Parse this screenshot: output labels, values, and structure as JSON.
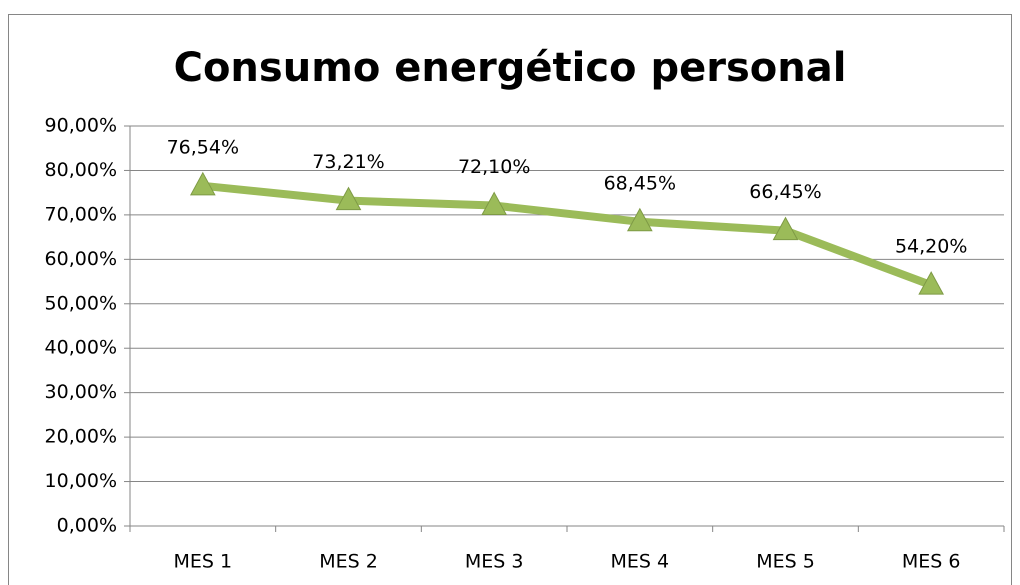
{
  "chart_data": {
    "type": "line",
    "title": "Consumo energético personal",
    "categories": [
      "MES 1",
      "MES 2",
      "MES 3",
      "MES 4",
      "MES 5",
      "MES 6"
    ],
    "series": [
      {
        "color": "#9bbb59",
        "values": [
          76.54,
          73.21,
          72.1,
          68.45,
          66.45,
          54.2
        ],
        "value_labels": [
          "76,54%",
          "73,21%",
          "72,10%",
          "68,45%",
          "66,45%",
          "54,20%"
        ]
      }
    ],
    "ylim": [
      0,
      90
    ],
    "yticks": [
      {
        "value": 0,
        "label": "0,00%"
      },
      {
        "value": 10,
        "label": "10,00%"
      },
      {
        "value": 20,
        "label": "20,00%"
      },
      {
        "value": 30,
        "label": "30,00%"
      },
      {
        "value": 40,
        "label": "40,00%"
      },
      {
        "value": 50,
        "label": "50,00%"
      },
      {
        "value": 60,
        "label": "60,00%"
      },
      {
        "value": 70,
        "label": "70,00%"
      },
      {
        "value": 80,
        "label": "80,00%"
      },
      {
        "value": 90,
        "label": "90,00%"
      }
    ],
    "grid": true
  }
}
